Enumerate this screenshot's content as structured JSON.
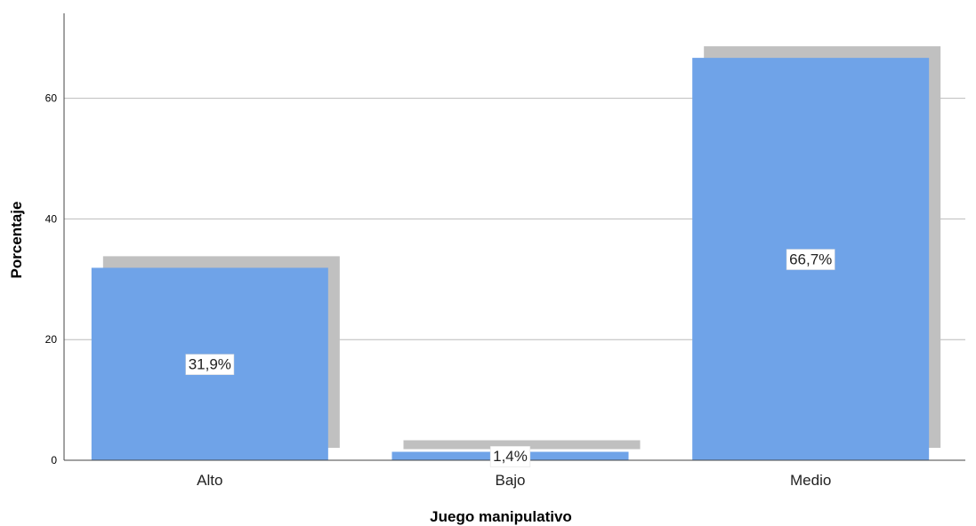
{
  "chart_data": {
    "type": "bar",
    "xlabel": "Juego manipulativo",
    "ylabel": "Porcentaje",
    "categories": [
      "Alto",
      "Bajo",
      "Medio"
    ],
    "values": [
      31.9,
      1.4,
      66.7
    ],
    "data_labels": [
      "31,9%",
      "1,4%",
      "66,7%"
    ],
    "ylim": [
      0,
      75
    ],
    "yticks": [
      0,
      20,
      40,
      60
    ],
    "grid": true,
    "bar_color": "#6fa3e8",
    "shadow_color": "#c0c0c0",
    "gridline_color": "#bcbcbc"
  }
}
